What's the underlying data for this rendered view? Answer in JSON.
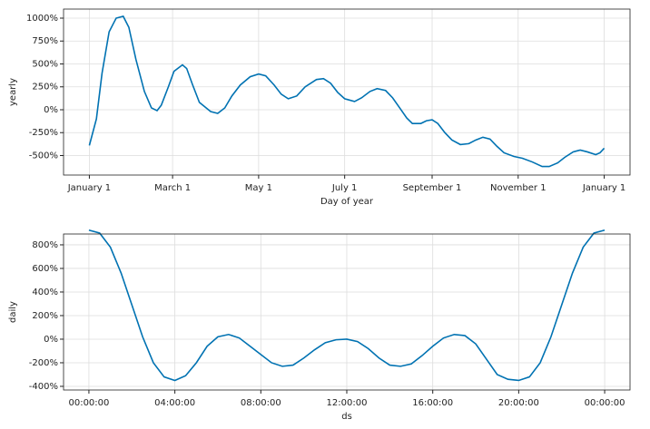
{
  "chart_data": [
    {
      "type": "line",
      "ylabel": "yearly",
      "xlabel": "Day of year",
      "grid": true,
      "xlim": [
        -18.3,
        383.3
      ],
      "ylim": [
        -713,
        1099
      ],
      "xticks": [
        {
          "value": 0,
          "label": "January 1"
        },
        {
          "value": 59,
          "label": "March 1"
        },
        {
          "value": 120,
          "label": "May 1"
        },
        {
          "value": 181,
          "label": "July 1"
        },
        {
          "value": 243,
          "label": "September 1"
        },
        {
          "value": 304,
          "label": "November 1"
        },
        {
          "value": 365,
          "label": "January 1"
        }
      ],
      "yticks": [
        {
          "value": -500,
          "label": "-500%"
        },
        {
          "value": -250,
          "label": "-250%"
        },
        {
          "value": 0,
          "label": "0%"
        },
        {
          "value": 250,
          "label": "250%"
        },
        {
          "value": 500,
          "label": "500%"
        },
        {
          "value": 750,
          "label": "750%"
        },
        {
          "value": 1000,
          "label": "1000%"
        }
      ],
      "series": [
        {
          "color": "#0072B2",
          "x": [
            0,
            5,
            9,
            14,
            19,
            24,
            28,
            33,
            39,
            44,
            48,
            51,
            56,
            60,
            66,
            69,
            73,
            78,
            86,
            91,
            96,
            101,
            107,
            114,
            120,
            125,
            131,
            136,
            141,
            147,
            153,
            161,
            166,
            171,
            176,
            181,
            188,
            193,
            199,
            204,
            210,
            215,
            220,
            225,
            229,
            235,
            239,
            243,
            247,
            252,
            257,
            263,
            269,
            274,
            279,
            284,
            289,
            294,
            301,
            307,
            314,
            321,
            326,
            332,
            337,
            343,
            348,
            353,
            359,
            362,
            365
          ],
          "values": [
            -390,
            -100,
            400,
            850,
            1000,
            1020,
            900,
            550,
            200,
            20,
            -10,
            50,
            250,
            420,
            490,
            450,
            280,
            80,
            -20,
            -40,
            20,
            150,
            270,
            360,
            390,
            370,
            270,
            170,
            120,
            150,
            250,
            330,
            340,
            290,
            190,
            120,
            90,
            130,
            200,
            230,
            210,
            130,
            20,
            -90,
            -150,
            -150,
            -120,
            -110,
            -150,
            -250,
            -330,
            -380,
            -370,
            -330,
            -300,
            -320,
            -400,
            -470,
            -510,
            -530,
            -570,
            -620,
            -620,
            -580,
            -520,
            -460,
            -440,
            -460,
            -490,
            -470,
            -420
          ]
        }
      ]
    },
    {
      "type": "line",
      "ylabel": "daily",
      "xlabel": "ds",
      "grid": true,
      "xlim": [
        -1.18,
        25.18
      ],
      "ylim": [
        -431,
        892
      ],
      "xticks": [
        {
          "value": 0,
          "label": "00:00:00"
        },
        {
          "value": 4,
          "label": "04:00:00"
        },
        {
          "value": 8,
          "label": "08:00:00"
        },
        {
          "value": 12,
          "label": "12:00:00"
        },
        {
          "value": 16,
          "label": "16:00:00"
        },
        {
          "value": 20,
          "label": "20:00:00"
        },
        {
          "value": 24,
          "label": "00:00:00"
        }
      ],
      "yticks": [
        {
          "value": -400,
          "label": "-400%"
        },
        {
          "value": -200,
          "label": "-200%"
        },
        {
          "value": 0,
          "label": "0%"
        },
        {
          "value": 200,
          "label": "200%"
        },
        {
          "value": 400,
          "label": "400%"
        },
        {
          "value": 600,
          "label": "600%"
        },
        {
          "value": 800,
          "label": "800%"
        }
      ],
      "series": [
        {
          "color": "#0072B2",
          "x": [
            0,
            0.5,
            1,
            1.5,
            2,
            2.5,
            3,
            3.5,
            4,
            4.5,
            5,
            5.5,
            6,
            6.5,
            7,
            7.5,
            8,
            8.5,
            9,
            9.5,
            10,
            10.5,
            11,
            11.5,
            12,
            12.5,
            13,
            13.5,
            14,
            14.5,
            15,
            15.5,
            16,
            16.5,
            17,
            17.5,
            18,
            18.5,
            19,
            19.5,
            20,
            20.5,
            21,
            21.5,
            22,
            22.5,
            23,
            23.5,
            24
          ],
          "values": [
            925,
            900,
            780,
            560,
            290,
            20,
            -200,
            -320,
            -350,
            -310,
            -200,
            -60,
            20,
            40,
            10,
            -60,
            -130,
            -200,
            -230,
            -220,
            -160,
            -90,
            -30,
            -5,
            0,
            -20,
            -80,
            -160,
            -220,
            -230,
            -210,
            -140,
            -60,
            10,
            40,
            30,
            -40,
            -170,
            -300,
            -340,
            -350,
            -320,
            -200,
            20,
            290,
            560,
            780,
            900,
            925
          ]
        }
      ]
    }
  ]
}
